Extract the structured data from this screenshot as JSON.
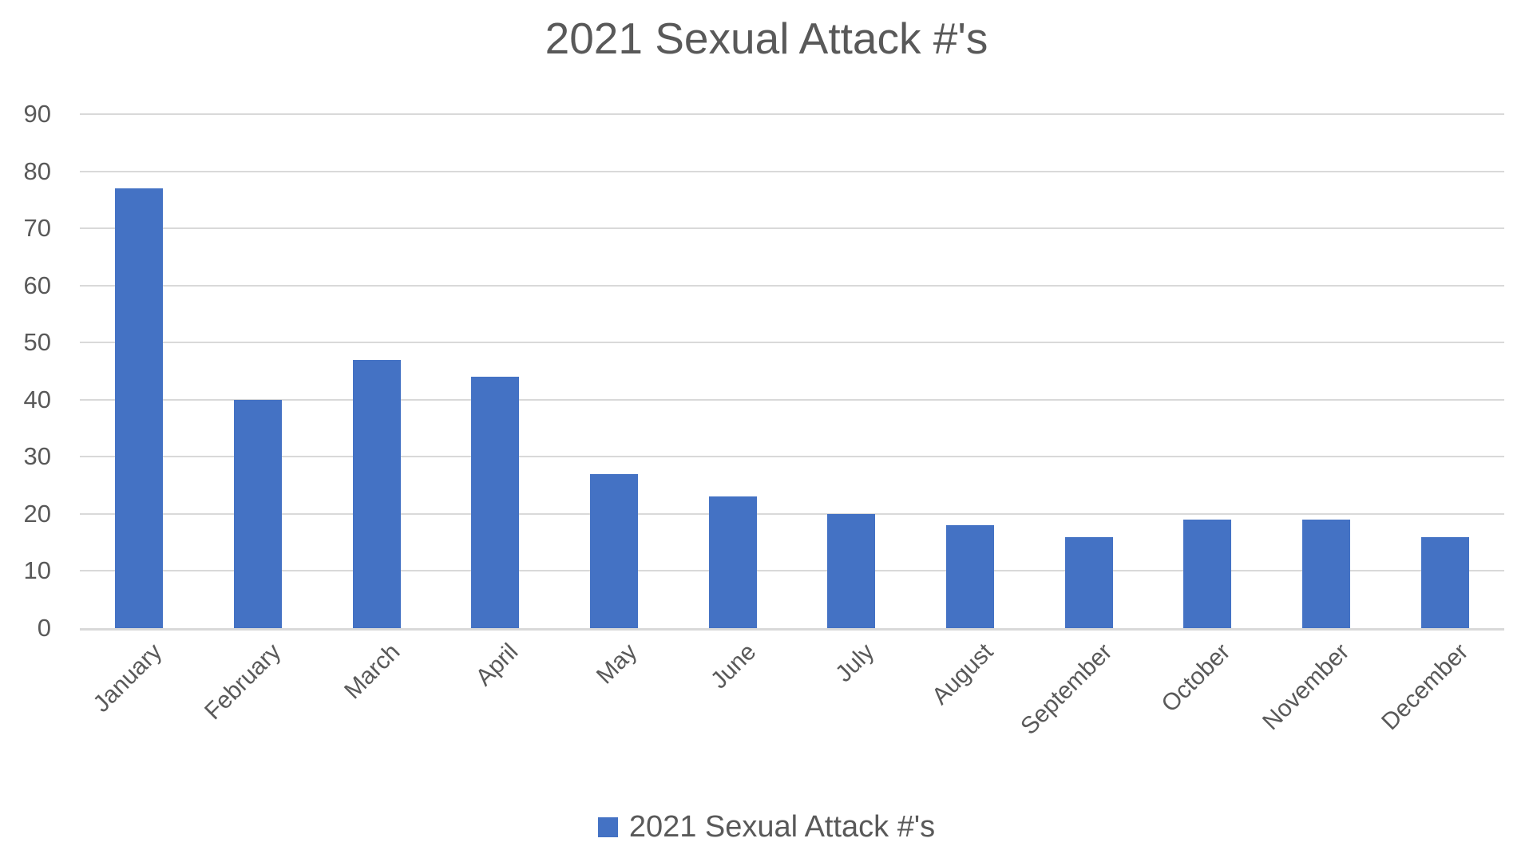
{
  "chart_data": {
    "type": "bar",
    "title": "2021 Sexual Attack #'s",
    "categories": [
      "January",
      "February",
      "March",
      "April",
      "May",
      "June",
      "July",
      "August",
      "September",
      "October",
      "November",
      "December"
    ],
    "values": [
      77,
      40,
      47,
      44,
      27,
      23,
      20,
      18,
      16,
      19,
      19,
      16
    ],
    "series_name": "2021 Sexual Attack #'s",
    "xlabel": "",
    "ylabel": "",
    "ylim": [
      0,
      90
    ],
    "ytick_interval": 10,
    "ytick_labels": [
      "0",
      "10",
      "20",
      "30",
      "40",
      "50",
      "60",
      "70",
      "80",
      "90"
    ],
    "grid": "horizontal",
    "legend": {
      "label": "2021 Sexual Attack #'s",
      "position": "bottom-center",
      "marker": "square"
    },
    "colors": {
      "bar": "#4472C4",
      "text": "#595959",
      "gridline": "#D9D9D9",
      "axis_line": "#D9D9D9",
      "background": "#FFFFFF"
    }
  }
}
